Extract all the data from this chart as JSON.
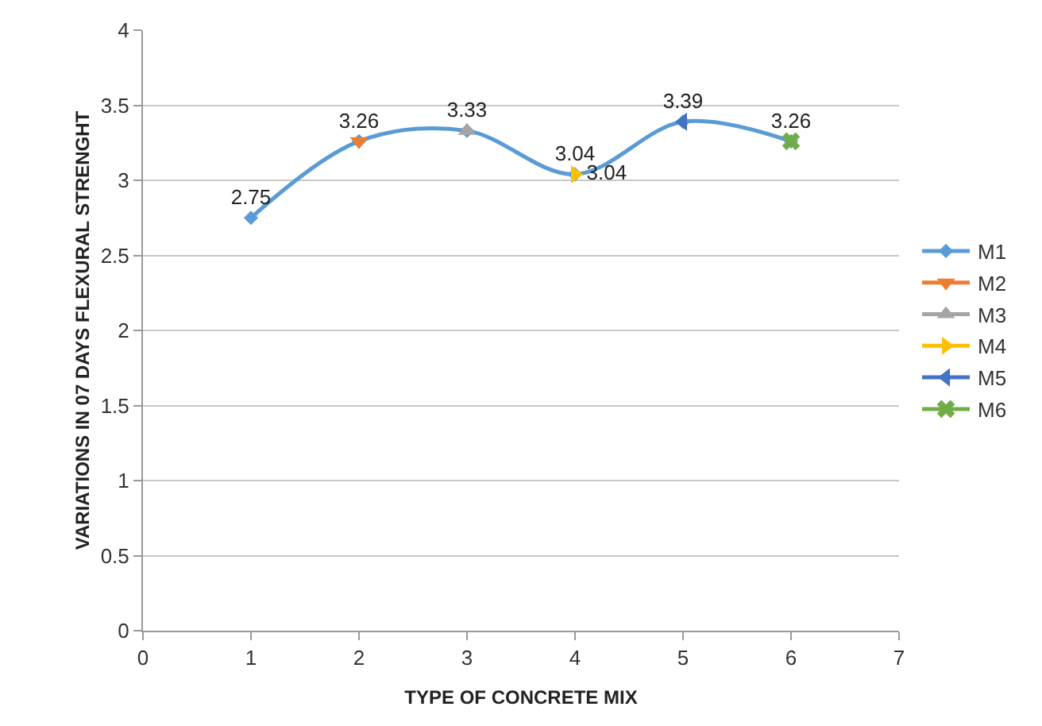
{
  "chart_data": {
    "type": "line",
    "xlabel": "TYPE OF CONCRETE MIX",
    "ylabel": "VARIATIONS IN 07 DAYS FLEXURAL STRENGHT",
    "xlim": [
      0,
      7
    ],
    "xticks": [
      0,
      1,
      2,
      3,
      4,
      5,
      6,
      7
    ],
    "ylim": [
      0,
      4
    ],
    "yticks": [
      0,
      0.5,
      1,
      1.5,
      2,
      2.5,
      3,
      3.5,
      4
    ],
    "grid": "y",
    "legend": "right",
    "series": [
      {
        "name": "M1",
        "color": "#5b9bd5",
        "marker": "diamond",
        "x": [
          1,
          2,
          3,
          4,
          5,
          6
        ],
        "values": [
          2.75,
          3.26,
          3.33,
          3.04,
          3.39,
          3.26
        ],
        "value_labels": [
          "2.75",
          "3.26",
          "3.33",
          "3.04",
          "3.39",
          "3.26"
        ]
      },
      {
        "name": "M2",
        "color": "#ed7d31",
        "marker": "triangle-down",
        "x": [
          2
        ],
        "values": [
          3.26
        ]
      },
      {
        "name": "M3",
        "color": "#a5a5a5",
        "marker": "triangle",
        "x": [
          3
        ],
        "values": [
          3.33
        ]
      },
      {
        "name": "M4",
        "color": "#ffc000",
        "marker": "triangle-right",
        "x": [
          4
        ],
        "values": [
          3.04
        ],
        "value_labels": [
          "3.04"
        ]
      },
      {
        "name": "M5",
        "color": "#4472c4",
        "marker": "triangle-left",
        "x": [
          5
        ],
        "values": [
          3.39
        ]
      },
      {
        "name": "M6",
        "color": "#70ad47",
        "marker": "cross",
        "x": [
          6
        ],
        "values": [
          3.26
        ]
      }
    ]
  }
}
